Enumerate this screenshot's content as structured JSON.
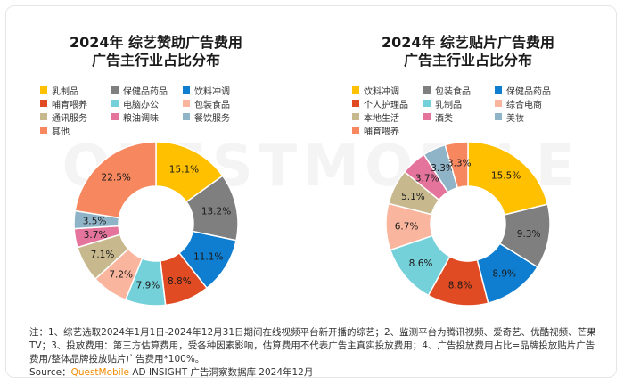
{
  "watermark_text": "QUESTMOBILE",
  "chart_data": [
    {
      "type": "pie",
      "title": "2024年 综艺赞助广告费用\n广告主行业占比分布",
      "title_lines": [
        "2024年 综艺赞助广告费用",
        "广告主行业占比分布"
      ],
      "legend_position": "top",
      "slices": [
        {
          "label": "乳制品",
          "value": 15.1,
          "display": "15.1%",
          "color": "#ffc000"
        },
        {
          "label": "保健品药品",
          "value": 13.2,
          "display": "13.2%",
          "color": "#7f7f7f"
        },
        {
          "label": "饮料冲调",
          "value": 11.1,
          "display": "11.1%",
          "color": "#0f7ed1"
        },
        {
          "label": "哺育喂养",
          "value": 8.8,
          "display": "8.8%",
          "color": "#e14b23"
        },
        {
          "label": "电脑办公",
          "value": 7.9,
          "display": "7.9%",
          "color": "#74d1d9"
        },
        {
          "label": "包装食品",
          "value": 7.2,
          "display": "7.2%",
          "color": "#f9b59d"
        },
        {
          "label": "通讯服务",
          "value": 7.1,
          "display": "7.1%",
          "color": "#c7b98d"
        },
        {
          "label": "粮油调味",
          "value": 3.7,
          "display": "3.7%",
          "color": "#e5749c"
        },
        {
          "label": "餐饮服务",
          "value": 3.5,
          "display": "3.5%",
          "color": "#8fb4c7"
        },
        {
          "label": "其他",
          "value": 22.5,
          "display": "22.5%",
          "color": "#f7875f"
        }
      ]
    },
    {
      "type": "pie",
      "title": "2024年 综艺贴片广告费用\n广告主行业占比分布",
      "title_lines": [
        "2024年 综艺贴片广告费用",
        "广告主行业占比分布"
      ],
      "legend_position": "top",
      "slices": [
        {
          "label": "饮料冲调",
          "value": 15.5,
          "display": "15.5%",
          "color": "#ffc000"
        },
        {
          "label": "包装食品",
          "value": 9.3,
          "display": "9.3%",
          "color": "#7f7f7f"
        },
        {
          "label": "保健品药品",
          "value": 8.9,
          "display": "8.9%",
          "color": "#0f7ed1"
        },
        {
          "label": "个人护理品",
          "value": 8.8,
          "display": "8.8%",
          "color": "#e14b23"
        },
        {
          "label": "乳制品",
          "value": 8.6,
          "display": "8.6%",
          "color": "#74d1d9"
        },
        {
          "label": "综合电商",
          "value": 6.7,
          "display": "6.7%",
          "color": "#f9b59d"
        },
        {
          "label": "本地生活",
          "value": 5.1,
          "display": "5.1%",
          "color": "#c7b98d"
        },
        {
          "label": "酒类",
          "value": 3.7,
          "display": "3.7%",
          "color": "#e5749c"
        },
        {
          "label": "美妆",
          "value": 3.3,
          "display": "3.3%",
          "color": "#8fb4c7"
        },
        {
          "label": "哺育喂养",
          "value": 3.3,
          "display": "3.3%",
          "color": "#f7875f"
        }
      ]
    }
  ],
  "notes": {
    "text": "注：1、综艺选取2024年1月1日-2024年12月31日期间在线视频平台新开播的综艺；2、监测平台为腾讯视频、爱奇艺、优酷视频、芒果TV；3、投放费用：第三方估算费用，受各种因素影响，估算费用不代表广告主真实投放费用；4、广告投放费用占比=品牌投放贴片广告费用/整体品牌投放贴片广告费用*100%。",
    "source_prefix": "Source：",
    "source_brand": "QuestMobile",
    "source_rest": " AD INSIGHT 广告洞察数据库 2024年12月"
  }
}
